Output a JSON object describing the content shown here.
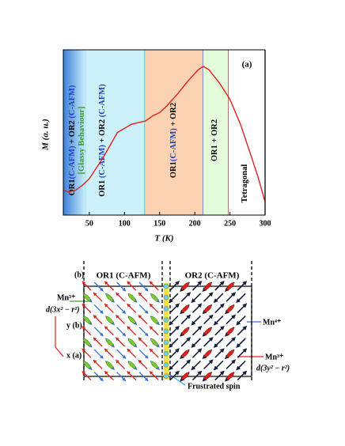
{
  "chart_data": {
    "type": "line",
    "panel_label": "(a)",
    "x_label": "T (K)",
    "y_label": "M (a. u.)",
    "xlim": [
      13,
      300
    ],
    "xticks": [
      50,
      100,
      150,
      200,
      250,
      300
    ],
    "ylim": [
      0,
      1
    ],
    "regions": [
      {
        "from": 13,
        "to": 45,
        "color": "#3b7fd8",
        "border_color": "#9ad8ef",
        "label": [
          [
            {
              "text": "OR1",
              "color": "#000000"
            },
            {
              "text": "(C-AFM)",
              "color": "#1f3fcf"
            },
            {
              "text": " + OR2 ",
              "color": "#000000"
            },
            {
              "text": "(C-AFM)",
              "color": "#1f3fcf"
            }
          ],
          [
            {
              "text": "[Glassy Behaviour]",
              "color": "#3c9a2e"
            }
          ]
        ]
      },
      {
        "from": 45,
        "to": 129,
        "color": "#cdf1fb",
        "border_color": "#3aa6a6",
        "label": [
          [
            {
              "text": "OR1 ",
              "color": "#000000"
            },
            {
              "text": "(C-AFM)",
              "color": "#1f3fcf"
            },
            {
              "text": " + OR2 ",
              "color": "#000000"
            },
            {
              "text": "(C-AFM)",
              "color": "#1f3fcf"
            }
          ]
        ]
      },
      {
        "from": 129,
        "to": 212,
        "color": "#fbd3b3",
        "border_color": "#4a5bd0",
        "label": [
          [
            {
              "text": "OR1",
              "color": "#000000"
            },
            {
              "text": "(C-AFM)",
              "color": "#1f3fcf"
            },
            {
              "text": " + OR2",
              "color": "#000000"
            }
          ]
        ]
      },
      {
        "from": 212,
        "to": 248,
        "color": "#e4fbdc",
        "border_color": "#8b2a2a",
        "label": [
          [
            {
              "text": "OR1 + OR2",
              "color": "#000000"
            }
          ]
        ]
      },
      {
        "from": 248,
        "to": 300,
        "color": "#ffffff",
        "border_color": "#000000",
        "label": [
          [
            {
              "text": "Tetragonal",
              "color": "#000000"
            }
          ]
        ]
      }
    ],
    "series": [
      {
        "color": "#e0201b",
        "x": [
          13,
          20,
          30,
          40,
          50,
          70,
          90,
          110,
          130,
          140,
          150,
          160,
          175,
          190,
          205,
          212,
          220,
          235,
          250,
          265,
          280,
          290,
          300
        ],
        "values": [
          0.15,
          0.14,
          0.15,
          0.18,
          0.22,
          0.35,
          0.5,
          0.55,
          0.57,
          0.6,
          0.62,
          0.66,
          0.73,
          0.81,
          0.88,
          0.9,
          0.88,
          0.8,
          0.7,
          0.55,
          0.36,
          0.23,
          0.08
        ]
      }
    ]
  },
  "diagram": {
    "label": "(b)",
    "left_phase": "OR1 (C-AFM)",
    "right_phase": "OR2 (C-AFM)",
    "mn3_left": "Mn³⁺",
    "orbital_left": "d(3x² − r²)",
    "axis_y": "y (b)",
    "axis_x": "x (a)",
    "mn4": "Mn⁴⁺",
    "mn3_right": "Mn³⁺",
    "orbital_right": "d(3y² − r²)",
    "frustrated": "Frustrated spin"
  }
}
